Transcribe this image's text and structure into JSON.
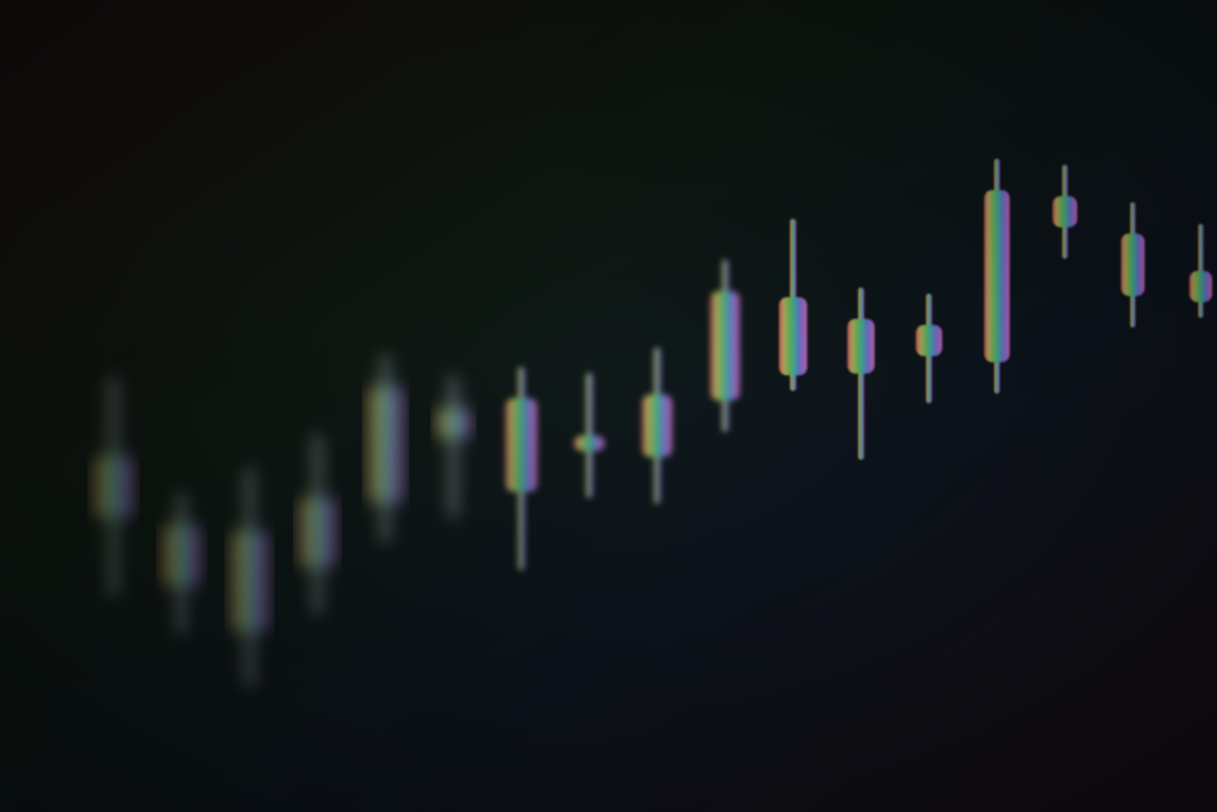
{
  "scene": {
    "subject": "candlestick-chart-photo",
    "style": "gradient-tinted, shallow depth of field",
    "background_colors": [
      "#1a0f10",
      "#0f1a12",
      "#0f1722",
      "#1a1018"
    ],
    "palette": [
      "#ff6b6b",
      "#e8d86a",
      "#6ee86a",
      "#46d6c9",
      "#7b8cff",
      "#c07bff",
      "#ff7bd6"
    ],
    "chart_data": {
      "type": "candlestick",
      "title": "",
      "xlabel": "",
      "ylabel": "",
      "series": [
        {
          "candles": [
            {
              "open": 560,
              "close": 520,
              "high": 610,
              "low": 470
            },
            {
              "open": 480,
              "close": 520,
              "high": 540,
              "low": 450
            },
            {
              "open": 520,
              "close": 455,
              "high": 560,
              "low": 420
            },
            {
              "open": 500,
              "close": 545,
              "high": 585,
              "low": 470
            },
            {
              "open": 545,
              "close": 620,
              "high": 640,
              "low": 520
            },
            {
              "open": 610,
              "close": 590,
              "high": 630,
              "low": 540
            },
            {
              "open": 560,
              "close": 620,
              "high": 640,
              "low": 510
            },
            {
              "open": 600,
              "close": 590,
              "high": 640,
              "low": 560
            },
            {
              "open": 590,
              "close": 630,
              "high": 660,
              "low": 560
            },
            {
              "open": 630,
              "close": 700,
              "high": 720,
              "low": 610
            },
            {
              "open": 700,
              "close": 650,
              "high": 750,
              "low": 640
            },
            {
              "open": 655,
              "close": 690,
              "high": 710,
              "low": 600
            },
            {
              "open": 690,
              "close": 670,
              "high": 710,
              "low": 640
            },
            {
              "open": 670,
              "close": 780,
              "high": 800,
              "low": 650
            },
            {
              "open": 780,
              "close": 760,
              "high": 800,
              "low": 740
            },
            {
              "open": 760,
              "close": 720,
              "high": 780,
              "low": 700
            },
            {
              "open": 720,
              "close": 740,
              "high": 770,
              "low": 710
            }
          ]
        }
      ]
    }
  }
}
